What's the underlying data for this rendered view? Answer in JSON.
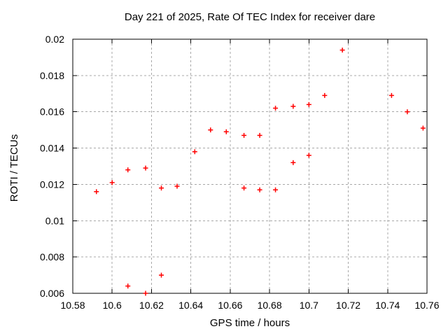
{
  "chart_data": {
    "type": "scatter",
    "title": "Day 221 of 2025, Rate Of TEC Index for receiver dare",
    "xlabel": "GPS time / hours",
    "ylabel": "ROTI / TECUs",
    "xlim": [
      10.58,
      10.76
    ],
    "ylim": [
      0.006,
      0.02
    ],
    "grid": true,
    "legend": "none",
    "marker": "plus",
    "marker_color": "#ff0000",
    "grid_color": "#a8a8a8",
    "axis_color": "#000000",
    "xticks": {
      "values": [
        10.58,
        10.6,
        10.62,
        10.64,
        10.66,
        10.68,
        10.7,
        10.72,
        10.74,
        10.76
      ],
      "labels": [
        "10.58",
        "10.6",
        "10.62",
        "10.64",
        "10.66",
        "10.68",
        "10.7",
        "10.72",
        "10.74",
        "10.76"
      ]
    },
    "yticks": {
      "values": [
        0.006,
        0.008,
        0.01,
        0.012,
        0.014,
        0.016,
        0.018,
        0.02
      ],
      "labels": [
        "0.006",
        "0.008",
        "0.01",
        "0.012",
        "0.014",
        "0.016",
        "0.018",
        "0.02"
      ]
    },
    "points": [
      [
        10.592,
        0.0116
      ],
      [
        10.6,
        0.0121
      ],
      [
        10.608,
        0.0128
      ],
      [
        10.608,
        0.0064
      ],
      [
        10.617,
        0.0129
      ],
      [
        10.617,
        0.006
      ],
      [
        10.625,
        0.0118
      ],
      [
        10.625,
        0.007
      ],
      [
        10.633,
        0.0119
      ],
      [
        10.642,
        0.0138
      ],
      [
        10.65,
        0.015
      ],
      [
        10.658,
        0.0149
      ],
      [
        10.667,
        0.0147
      ],
      [
        10.667,
        0.0118
      ],
      [
        10.675,
        0.0147
      ],
      [
        10.675,
        0.0117
      ],
      [
        10.683,
        0.0162
      ],
      [
        10.683,
        0.0117
      ],
      [
        10.692,
        0.0163
      ],
      [
        10.692,
        0.0132
      ],
      [
        10.7,
        0.0164
      ],
      [
        10.7,
        0.0136
      ],
      [
        10.708,
        0.0169
      ],
      [
        10.717,
        0.0194
      ],
      [
        10.742,
        0.0169
      ],
      [
        10.75,
        0.016
      ],
      [
        10.758,
        0.0151
      ]
    ]
  }
}
